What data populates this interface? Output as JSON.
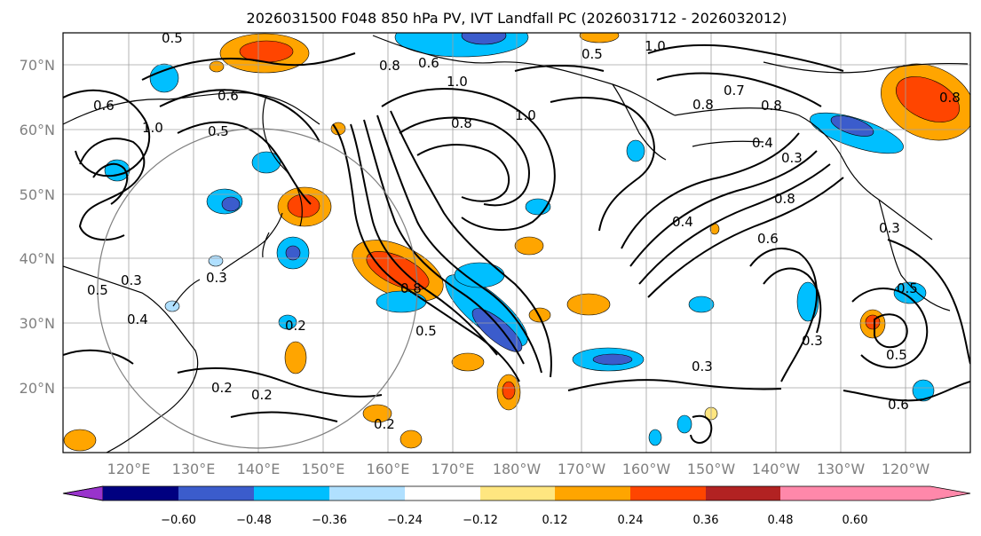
{
  "title": "2026031500 F048 850 hPa PV, IVT Landfall PC (2026031712 - 2026032012)",
  "map": {
    "lat_ticks": [
      "70°N",
      "60°N",
      "50°N",
      "40°N",
      "30°N",
      "20°N"
    ],
    "lon_ticks": [
      "120°E",
      "130°E",
      "140°E",
      "150°E",
      "160°E",
      "170°E",
      "180°W",
      "170°W",
      "160°W",
      "150°W",
      "140°W",
      "130°W",
      "120°W"
    ],
    "grid": true,
    "range_ring_color": "#808080",
    "contour_labels": [
      {
        "text": "0.5"
      },
      {
        "text": "0.6"
      },
      {
        "text": "0.6"
      },
      {
        "text": "0.5"
      },
      {
        "text": "1.0"
      },
      {
        "text": "0.8"
      },
      {
        "text": "0.6"
      },
      {
        "text": "0.5"
      },
      {
        "text": "1.0"
      },
      {
        "text": "0.8"
      },
      {
        "text": "1.0"
      },
      {
        "text": "0.8"
      },
      {
        "text": "0.7"
      },
      {
        "text": "0.8"
      },
      {
        "text": "0.4"
      },
      {
        "text": "0.3"
      },
      {
        "text": "0.8"
      },
      {
        "text": "0.4"
      },
      {
        "text": "0.6"
      },
      {
        "text": "0.5"
      },
      {
        "text": "0.3"
      },
      {
        "text": "0.3"
      },
      {
        "text": "0.4"
      },
      {
        "text": "0.5"
      },
      {
        "text": "0.2"
      },
      {
        "text": "0.2"
      },
      {
        "text": "0.2"
      },
      {
        "text": "0.2"
      },
      {
        "text": "0.5"
      },
      {
        "text": "0.3"
      },
      {
        "text": "0.8"
      },
      {
        "text": "0.3"
      },
      {
        "text": "0.5"
      },
      {
        "text": "0.6"
      },
      {
        "text": "0.3"
      },
      {
        "text": "0.8"
      },
      {
        "text": "1.0"
      }
    ]
  },
  "colorbar": {
    "tick_labels": [
      "−0.60",
      "−0.48",
      "−0.36",
      "−0.24",
      "−0.12",
      "0.12",
      "0.24",
      "0.36",
      "0.48",
      "0.60"
    ],
    "colors": [
      "#9933cc",
      "#000080",
      "#3b5ccc",
      "#00bfff",
      "#b0e0ff",
      "#ffffff",
      "#ffe680",
      "#ffa500",
      "#ff4500",
      "#b22222",
      "#ff88aa"
    ]
  },
  "shading_colors": {
    "neg_light": "#b0e0ff",
    "neg_mid": "#00bfff",
    "neg_strong": "#3b5ccc",
    "pos_light": "#ffe680",
    "pos_mid": "#ffa500",
    "pos_strong": "#ff4500"
  }
}
